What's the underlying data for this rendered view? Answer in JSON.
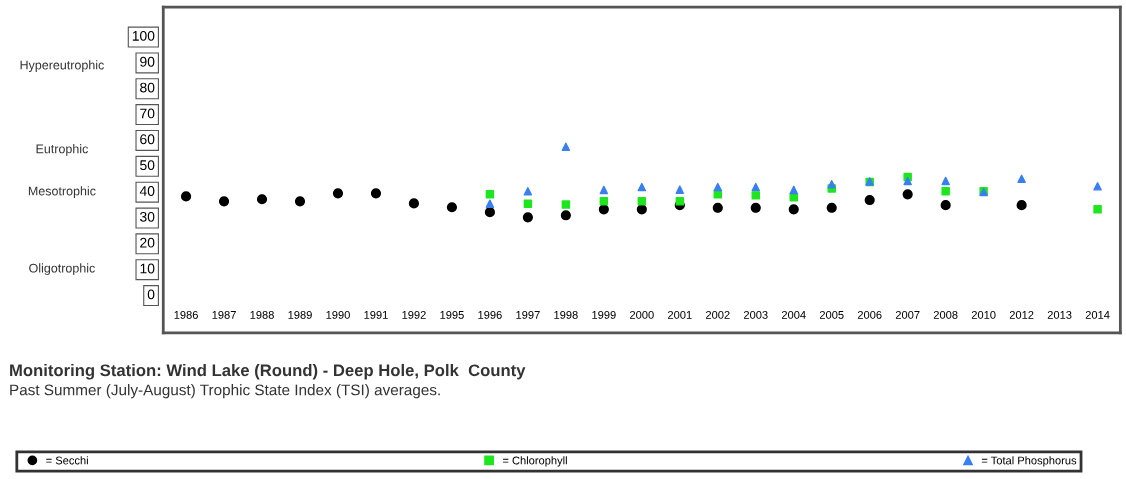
{
  "chart_data": {
    "type": "scatter",
    "title": "Monitoring Station: Wind Lake (Round) - Deep Hole, Polk  County",
    "subtitle": "Past Summer (July-August) Trophic State Index (TSI) averages.",
    "categories": [
      "1986",
      "1987",
      "1988",
      "1989",
      "1990",
      "1991",
      "1992",
      "1995",
      "1996",
      "1997",
      "1998",
      "1999",
      "2000",
      "2001",
      "2002",
      "2003",
      "2004",
      "2005",
      "2006",
      "2007",
      "2008",
      "2010",
      "2012",
      "2013",
      "2014"
    ],
    "series": [
      {
        "name": "= Secchi",
        "color": "#000000",
        "marker": "circle",
        "values": [
          37.8,
          35.9,
          36.7,
          35.9,
          39,
          39,
          35.1,
          33.6,
          31.7,
          29.7,
          30.5,
          32.8,
          32.8,
          34.4,
          33.4,
          33.4,
          32.8,
          33.4,
          36.4,
          38.6,
          34.4,
          null,
          34.4,
          null,
          null
        ]
      },
      {
        "name": "= Chlorophyll",
        "color": "#1ee61e",
        "marker": "square",
        "values": [
          null,
          null,
          null,
          null,
          null,
          null,
          null,
          null,
          38.6,
          35,
          34.7,
          35.9,
          35.9,
          35.9,
          38.6,
          38.2,
          37.5,
          40.9,
          43.4,
          45.3,
          39.8,
          39.8,
          null,
          null,
          32.8
        ]
      },
      {
        "name": "= Total Phosphorus",
        "color": "#3a7ff0",
        "marker": "triangle",
        "values": [
          null,
          null,
          null,
          null,
          null,
          null,
          null,
          null,
          35,
          39.8,
          57,
          40.3,
          41.4,
          40.4,
          41.4,
          41.4,
          40.3,
          42.5,
          43.6,
          43.8,
          43.8,
          39.5,
          44.6,
          null,
          41.7
        ]
      }
    ],
    "ylim": [
      -15,
      111
    ],
    "yticks": [
      0,
      10,
      20,
      30,
      40,
      50,
      60,
      70,
      80,
      90,
      100
    ],
    "annotations": [
      "Hypereutrophic",
      "Eutrophic",
      "Mesotrophic",
      "Oligotrophic"
    ],
    "legend": "bottom"
  }
}
